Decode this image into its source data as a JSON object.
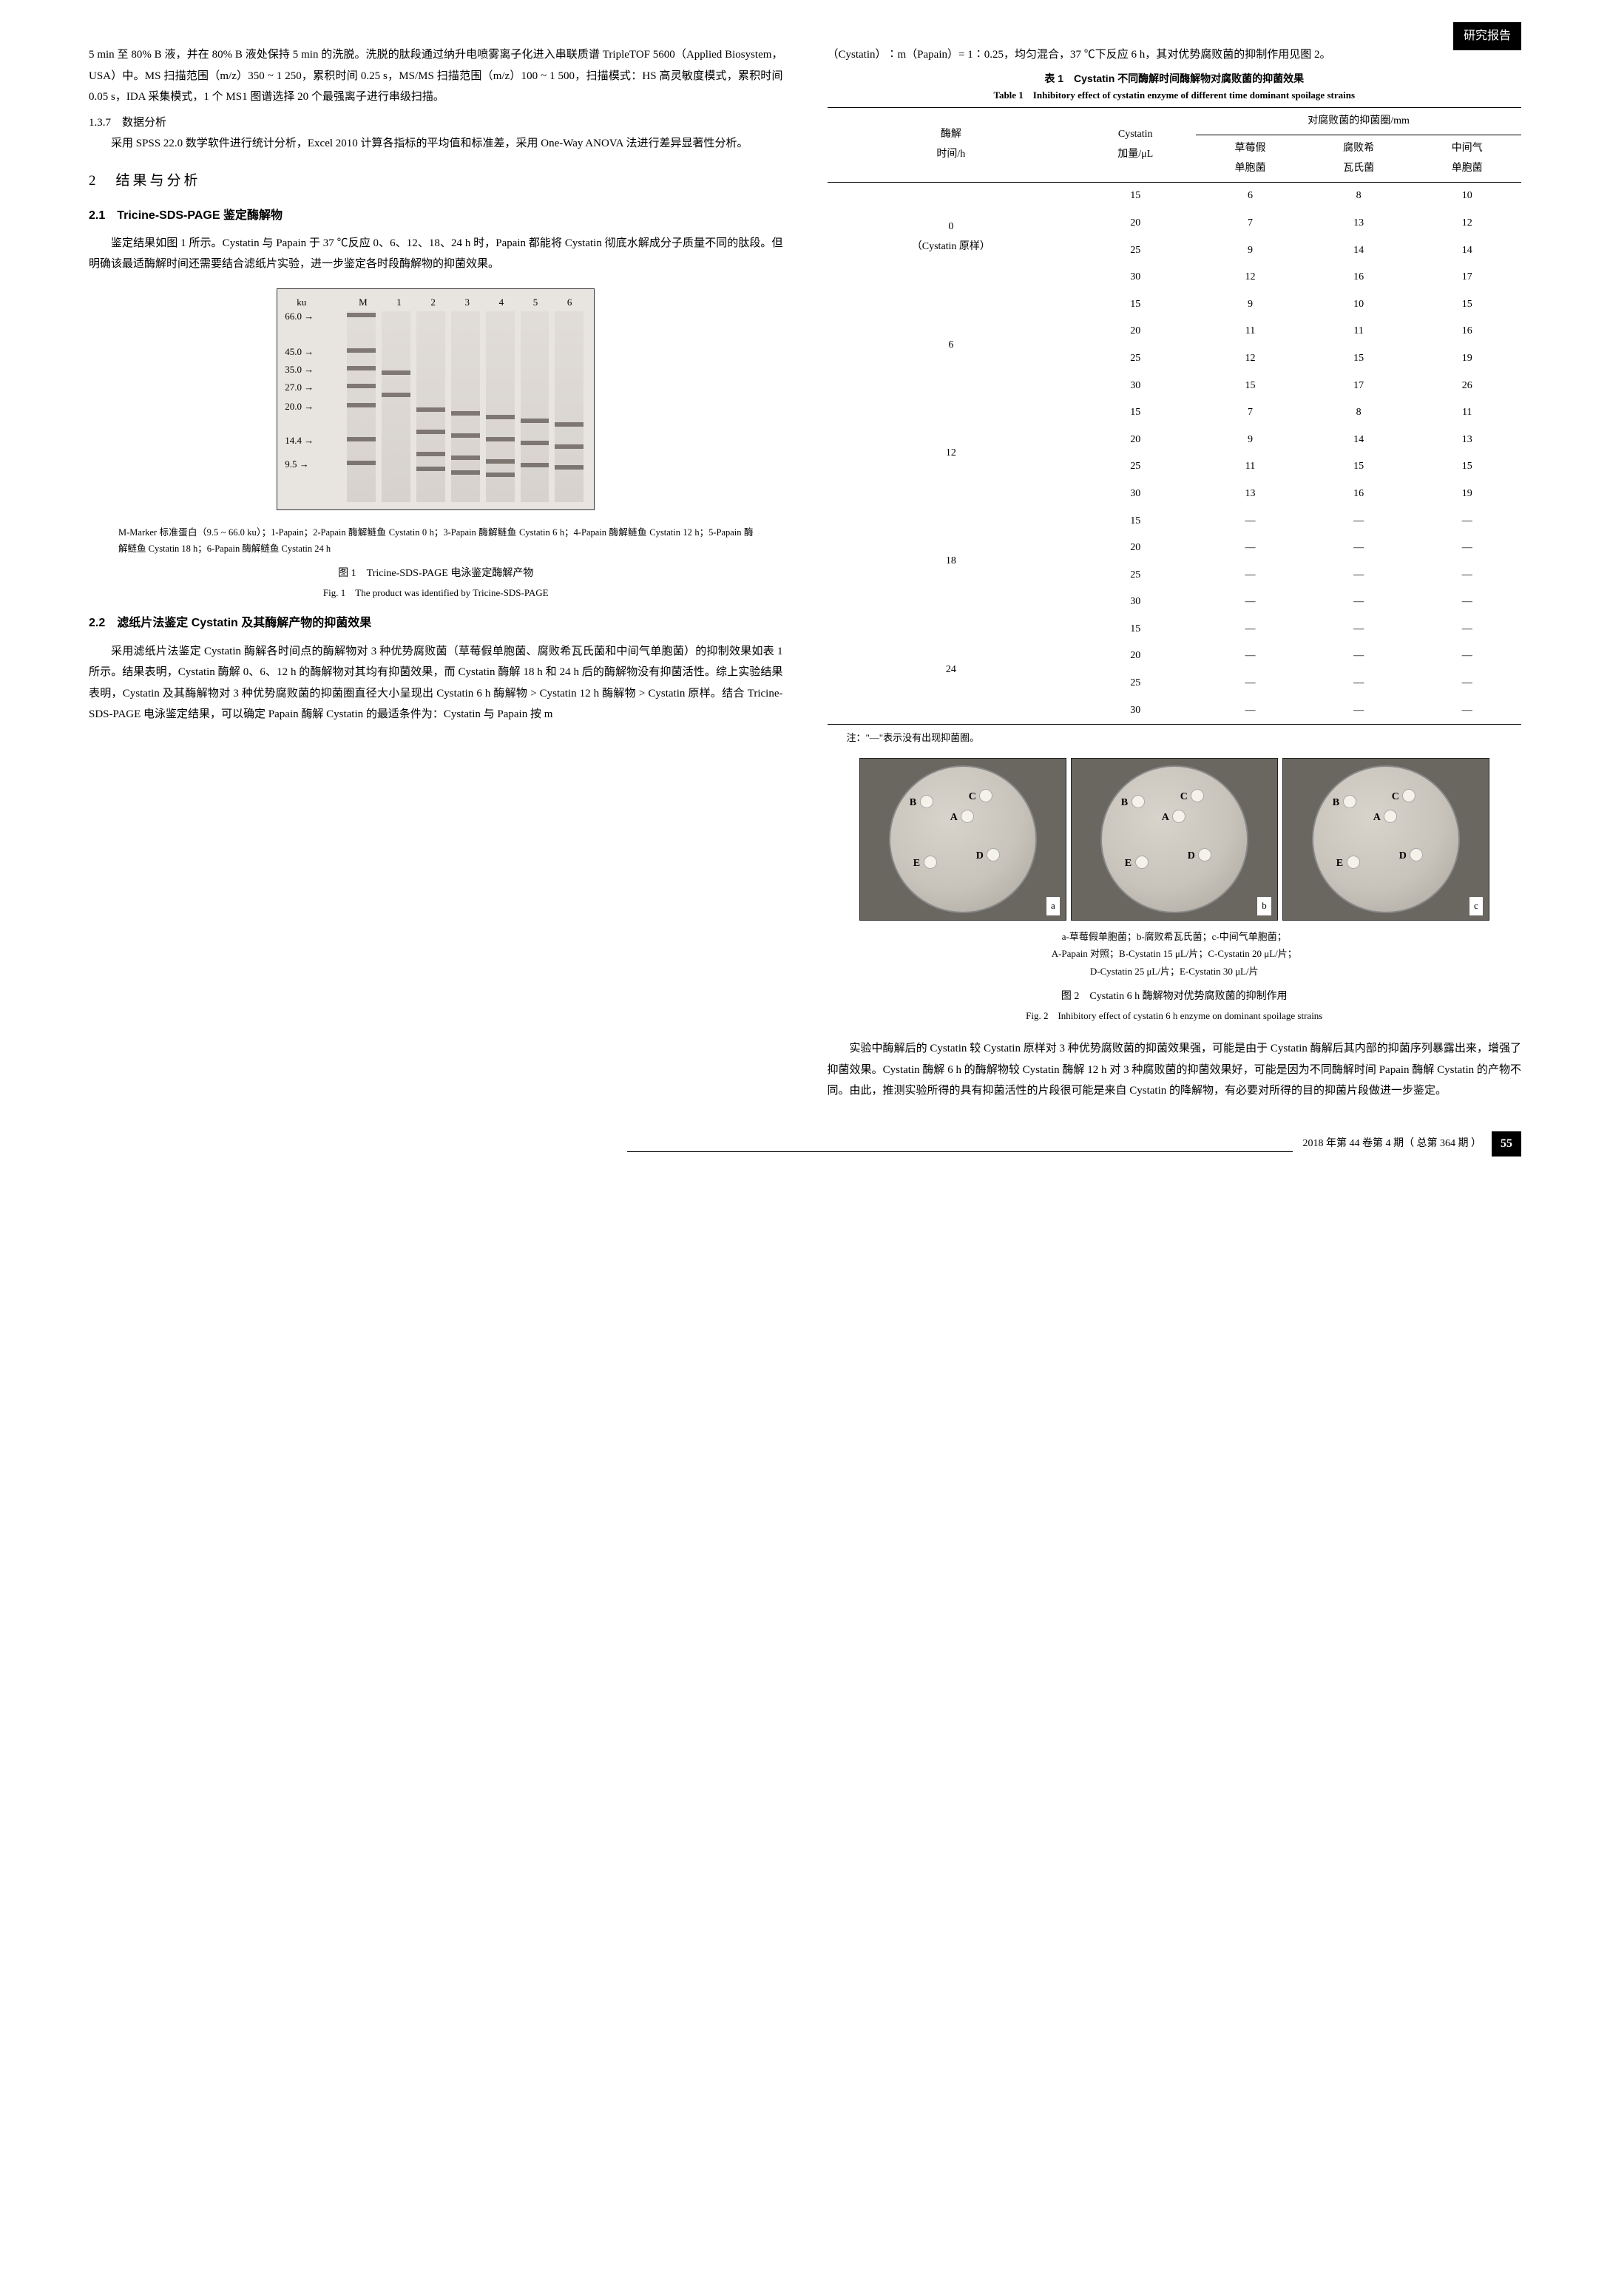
{
  "header_tag": "研究报告",
  "left": {
    "p1": "5 min 至 80% B 液，并在 80% B 液处保持 5 min 的洗脱。洗脱的肽段通过纳升电喷雾离子化进入串联质谱 TripleTOF 5600（Applied Biosystem，USA）中。MS 扫描范围（m/z）350 ~ 1 250，累积时间 0.25 s，MS/MS 扫描范围（m/z）100 ~ 1 500，扫描模式：HS 高灵敏度模式，累积时间 0.05 s，IDA 采集模式，1 个 MS1 图谱选择 20 个最强离子进行串级扫描。",
    "h137": "1.3.7　数据分析",
    "p2": "采用 SPSS 22.0 数学软件进行统计分析，Excel 2010 计算各指标的平均值和标准差，采用 One-Way ANOVA 法进行差异显著性分析。",
    "h2": "2　结果与分析",
    "h21": "2.1　Tricine-SDS-PAGE 鉴定酶解物",
    "p3": "鉴定结果如图 1 所示。Cystatin 与 Papain 于 37 ℃反应 0、6、12、18、24 h 时，Papain 都能将 Cystatin 彻底水解成分子质量不同的肽段。但明确该最适酶解时间还需要结合滤纸片实验，进一步鉴定各时段酶解物的抑菌效果。",
    "gel": {
      "ku_label": "ku",
      "lanes": [
        "M",
        "1",
        "2",
        "3",
        "4",
        "5",
        "6"
      ],
      "ladder": [
        "66.0 →",
        "45.0 →",
        "35.0 →",
        "27.0 →",
        "20.0 →",
        "14.4 →",
        "9.5 →"
      ]
    },
    "fig1_caption_small": "M-Marker 标准蛋白（9.5 ~ 66.0 ku）；1-Papain；2-Papain 酶解鲢鱼 Cystatin 0 h；3-Papain 酶解鲢鱼 Cystatin 6 h；4-Papain 酶解鲢鱼 Cystatin 12 h；5-Papain 酶解鲢鱼 Cystatin 18 h；6-Papain 酶解鲢鱼 Cystatin 24 h",
    "fig1_cn": "图 1　Tricine-SDS-PAGE 电泳鉴定酶解产物",
    "fig1_en": "Fig. 1　The product was identified by Tricine-SDS-PAGE",
    "h22": "2.2　滤纸片法鉴定 Cystatin 及其酶解产物的抑菌效果",
    "p4": "采用滤纸片法鉴定 Cystatin 酶解各时间点的酶解物对 3 种优势腐败菌（草莓假单胞菌、腐败希瓦氏菌和中间气单胞菌）的抑制效果如表 1 所示。结果表明，Cystatin 酶解 0、6、12 h 的酶解物对其均有抑菌效果，而 Cystatin 酶解 18 h 和 24 h 后的酶解物没有抑菌活性。综上实验结果表明，Cystatin 及其酶解物对 3 种优势腐败菌的抑菌圈直径大小呈现出 Cystatin 6 h 酶解物 > Cystatin 12 h 酶解物 > Cystatin 原样。结合 Tricine-SDS-PAGE 电泳鉴定结果，可以确定 Papain 酶解 Cystatin 的最适条件为：Cystatin 与 Papain 按 m"
  },
  "right": {
    "p1": "（Cystatin）∶m（Papain）= 1∶0.25，均匀混合，37 ℃下反应 6 h，其对优势腐败菌的抑制作用见图 2。",
    "tbl1_cn": "表 1　Cystatin 不同酶解时间酶解物对腐败菌的抑菌效果",
    "tbl1_en": "Table 1　Inhibitory effect of cystatin enzyme of different time dominant spoilage strains",
    "table": {
      "h_time": "酶解\n时间/h",
      "h_add": "Cystatin\n加量/μL",
      "h_zone": "对腐败菌的抑菌圈/mm",
      "h_b1": "草莓假\n单胞菌",
      "h_b2": "腐败希\n瓦氏菌",
      "h_b3": "中间气\n单胞菌",
      "groups": [
        {
          "time": "0\n（Cystatin 原样）",
          "rows": [
            [
              "15",
              "6",
              "8",
              "10"
            ],
            [
              "20",
              "7",
              "13",
              "12"
            ],
            [
              "25",
              "9",
              "14",
              "14"
            ],
            [
              "30",
              "12",
              "16",
              "17"
            ]
          ]
        },
        {
          "time": "6",
          "rows": [
            [
              "15",
              "9",
              "10",
              "15"
            ],
            [
              "20",
              "11",
              "11",
              "16"
            ],
            [
              "25",
              "12",
              "15",
              "19"
            ],
            [
              "30",
              "15",
              "17",
              "26"
            ]
          ]
        },
        {
          "time": "12",
          "rows": [
            [
              "15",
              "7",
              "8",
              "11"
            ],
            [
              "20",
              "9",
              "14",
              "13"
            ],
            [
              "25",
              "11",
              "15",
              "15"
            ],
            [
              "30",
              "13",
              "16",
              "19"
            ]
          ]
        },
        {
          "time": "18",
          "rows": [
            [
              "15",
              "—",
              "—",
              "—"
            ],
            [
              "20",
              "—",
              "—",
              "—"
            ],
            [
              "25",
              "—",
              "—",
              "—"
            ],
            [
              "30",
              "—",
              "—",
              "—"
            ]
          ]
        },
        {
          "time": "24",
          "rows": [
            [
              "15",
              "—",
              "—",
              "—"
            ],
            [
              "20",
              "—",
              "—",
              "—"
            ],
            [
              "25",
              "—",
              "—",
              "—"
            ],
            [
              "30",
              "—",
              "—",
              "—"
            ]
          ]
        }
      ]
    },
    "tbl_note": "注：\"—\"表示没有出现抑菌圈。",
    "petri_tags": [
      "a",
      "b",
      "c"
    ],
    "petri_labels": [
      "A",
      "B",
      "C",
      "D",
      "E"
    ],
    "fig2_caption": "a-草莓假单胞菌；b-腐败希瓦氏菌；c-中间气单胞菌；\nA-Papain 对照；B-Cystatin 15 μL/片；C-Cystatin 20 μL/片；\nD-Cystatin 25 μL/片；E-Cystatin 30 μL/片",
    "fig2_cn": "图 2　Cystatin 6 h 酶解物对优势腐败菌的抑制作用",
    "fig2_en": "Fig. 2　Inhibitory effect of cystatin 6 h enzyme on dominant spoilage strains",
    "p2": "实验中酶解后的 Cystatin 较 Cystatin 原样对 3 种优势腐败菌的抑菌效果强，可能是由于 Cystatin 酶解后其内部的抑菌序列暴露出来，增强了抑菌效果。Cystatin 酶解 6 h 的酶解物较 Cystatin 酶解 12 h 对 3 种腐败菌的抑菌效果好，可能是因为不同酶解时间 Papain 酶解 Cystatin 的产物不同。由此，推测实验所得的具有抑菌活性的片段很可能是来自 Cystatin 的降解物，有必要对所得的目的抑菌片段做进一步鉴定。"
  },
  "footer": {
    "issue": "2018 年第 44 卷第 4 期（ 总第 364 期 ）",
    "page": "55"
  }
}
